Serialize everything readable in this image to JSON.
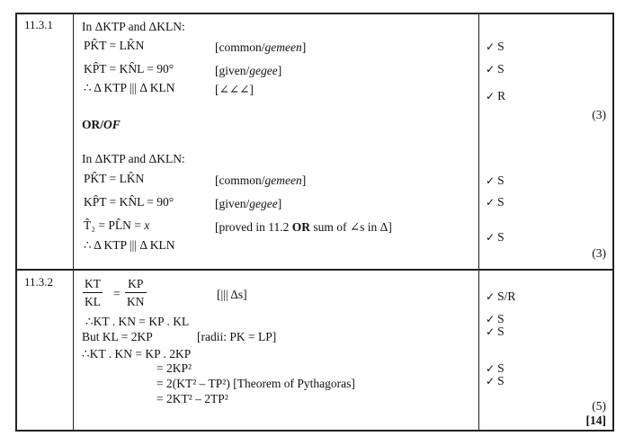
{
  "q1": {
    "number": "11.3.1",
    "a_intro": "In ΔKTP and ΔKLN:",
    "a_line1": "PK̂T = LK̂N",
    "a_reason1": "[common/gemeen]",
    "a_line2": "KP̂T = KN̂L = 90°",
    "a_reason2": "[given/gegee]",
    "a_line3": "∴ Δ KTP ||| Δ KLN",
    "a_reason3": "[∠∠∠]",
    "or_text": "OR/OF",
    "b_intro": "In ΔKTP and ΔKLN:",
    "b_line1": "PK̂T = LK̂N",
    "b_reason1": "[common/gemeen]",
    "b_line2": "KP̂T = KN̂L = 90°",
    "b_reason2": "[given/gegee]",
    "b_line3": "T̂₂ = PL̂N = x",
    "b_reason3": "[proved in 11.2 OR sum of ∠s in Δ]",
    "b_line4": "∴ Δ KTP ||| Δ KLN",
    "marks_a": [
      "S",
      "S",
      "R"
    ],
    "marks_b": [
      "S",
      "S",
      "S"
    ],
    "total_a": "(3)",
    "total_b": "(3)"
  },
  "q2": {
    "number": "11.3.2",
    "frac1_num": "KT",
    "frac1_den": "KL",
    "frac2_num": "KP",
    "frac2_den": "KN",
    "reason_frac": "[||| Δs]",
    "line2": "∴KT . KN = KP . KL",
    "line3": "But KL = 2KP",
    "reason3": "[radii: PK = LP]",
    "line4": "∴KT . KN = KP . 2KP",
    "line5": "= 2KP²",
    "line6": "= 2(KT² – TP²) [Theorem of Pythagoras]",
    "line7": "= 2KT² – 2TP²",
    "marks": [
      "S/R",
      "S",
      "S",
      "S",
      "S"
    ],
    "total": "(5)",
    "grand_total": "[14]"
  },
  "tick_symbol": "✓"
}
